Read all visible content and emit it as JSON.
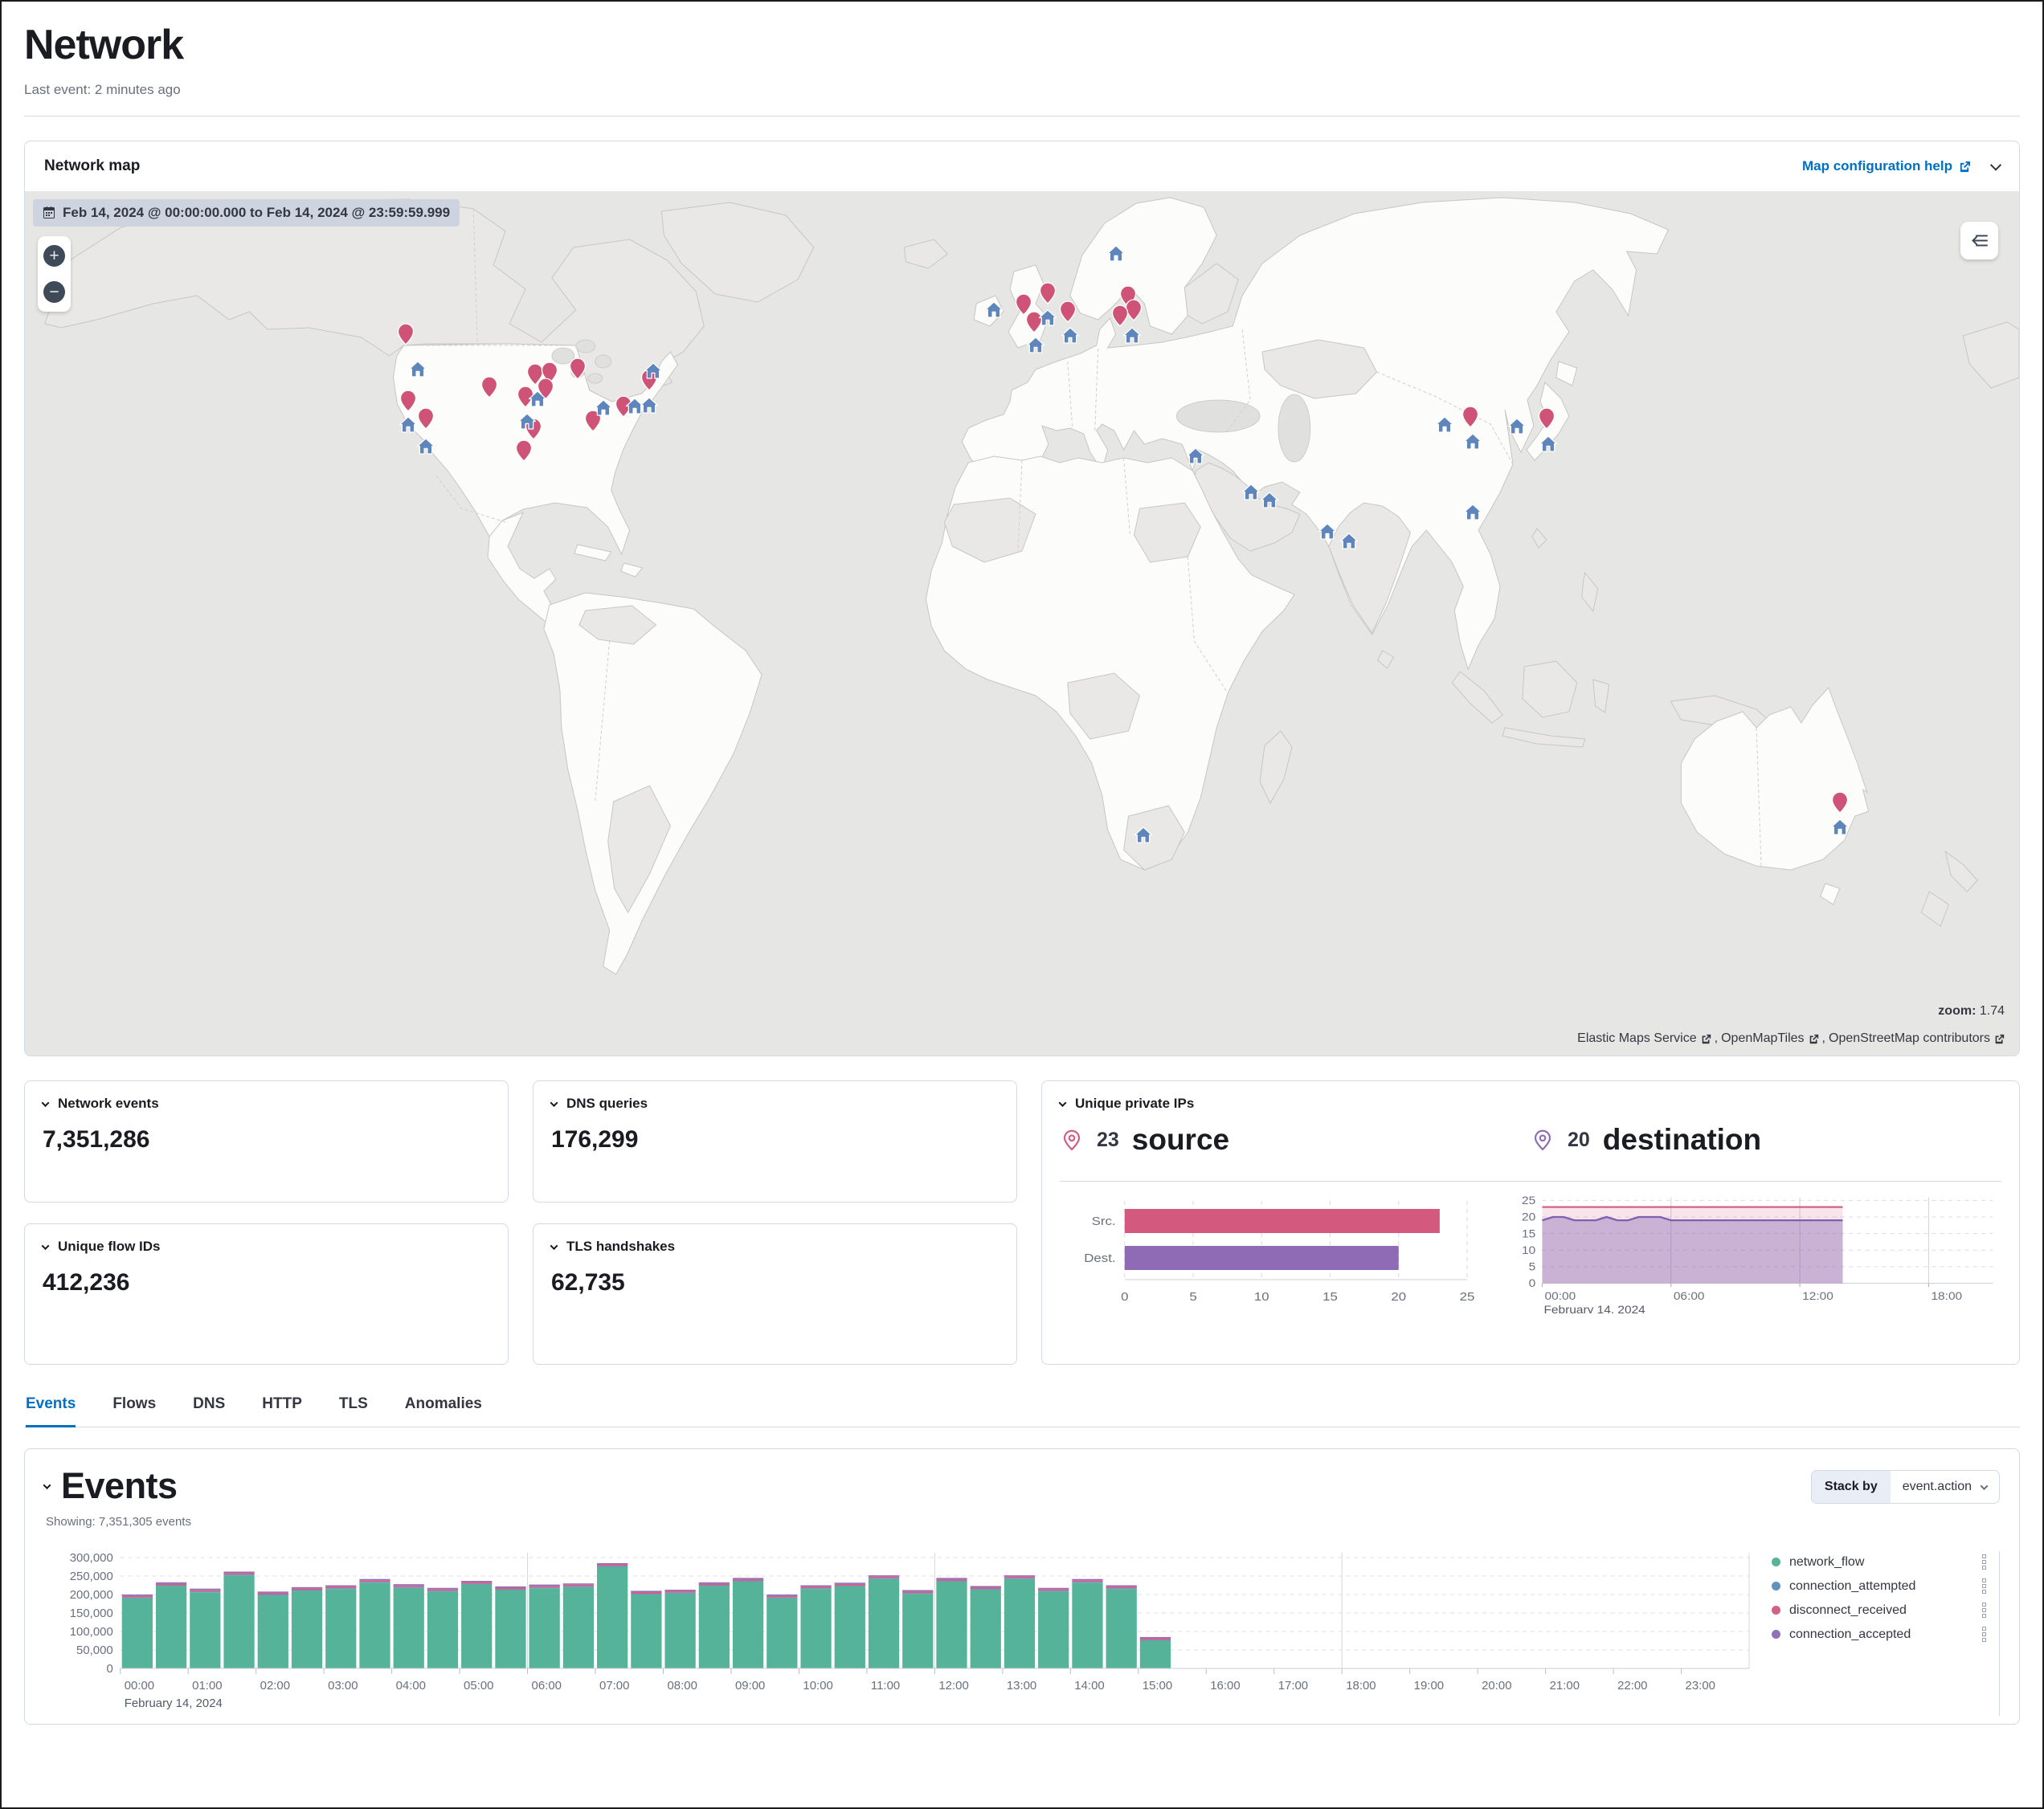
{
  "page": {
    "title": "Network",
    "last_event": "Last event: 2 minutes ago"
  },
  "map_panel": {
    "title": "Network map",
    "help_link": "Map configuration help",
    "date_badge": "Feb 14, 2024 @ 00:00:00.000 to Feb 14, 2024 @ 23:59:59.999",
    "zoom_label": "zoom:",
    "zoom_value": "1.74",
    "zoom_in": "+",
    "zoom_out": "−",
    "attribution": {
      "a": "Elastic Maps Service",
      "b": "OpenMapTiles",
      "c": "OpenStreetMap contributors",
      "separator": ", "
    },
    "pin_colors": {
      "destination": "#CE5377",
      "source": "#5E86BC"
    },
    "pins": {
      "destination": [
        [
          19.1,
          18.3
        ],
        [
          19.2,
          26.0
        ],
        [
          20.1,
          28.1
        ],
        [
          23.3,
          24.4
        ],
        [
          25.6,
          23.0
        ],
        [
          26.3,
          22.8
        ],
        [
          27.7,
          22.3
        ],
        [
          25.1,
          25.6
        ],
        [
          26.1,
          24.6
        ],
        [
          25.5,
          29.3
        ],
        [
          25.0,
          31.8
        ],
        [
          28.5,
          28.3
        ],
        [
          30.0,
          26.7
        ],
        [
          31.3,
          23.6
        ],
        [
          50.1,
          14.9
        ],
        [
          51.3,
          13.6
        ],
        [
          50.6,
          16.9
        ],
        [
          52.3,
          15.7
        ],
        [
          55.3,
          13.9
        ],
        [
          55.6,
          15.5
        ],
        [
          54.9,
          16.2
        ],
        [
          72.5,
          27.9
        ],
        [
          76.3,
          28.1
        ],
        [
          91.0,
          72.5
        ]
      ],
      "source": [
        [
          19.7,
          20.8
        ],
        [
          19.2,
          27.2
        ],
        [
          20.1,
          29.7
        ],
        [
          25.7,
          24.3
        ],
        [
          25.2,
          26.9
        ],
        [
          29.0,
          25.3
        ],
        [
          30.6,
          25.1
        ],
        [
          31.3,
          25.0
        ],
        [
          31.5,
          21.0
        ],
        [
          48.6,
          13.9
        ],
        [
          51.3,
          14.9
        ],
        [
          50.7,
          18.0
        ],
        [
          52.4,
          16.9
        ],
        [
          55.5,
          16.9
        ],
        [
          54.7,
          7.4
        ],
        [
          58.7,
          30.9
        ],
        [
          61.5,
          35.0
        ],
        [
          62.4,
          36.0
        ],
        [
          65.3,
          39.6
        ],
        [
          66.4,
          40.7
        ],
        [
          71.2,
          27.2
        ],
        [
          72.6,
          29.2
        ],
        [
          74.8,
          27.4
        ],
        [
          76.4,
          29.5
        ],
        [
          72.6,
          37.4
        ],
        [
          56.1,
          74.7
        ],
        [
          91.0,
          73.8
        ]
      ]
    }
  },
  "kpis": [
    {
      "label": "Network events",
      "value": "7,351,286"
    },
    {
      "label": "DNS queries",
      "value": "176,299"
    },
    {
      "label": "Unique flow IDs",
      "value": "412,236"
    },
    {
      "label": "TLS handshakes",
      "value": "62,735"
    }
  ],
  "unique_ips": {
    "label": "Unique private IPs",
    "source_count": "23",
    "source_word": "source",
    "destination_count": "20",
    "destination_word": "destination",
    "source_color": "#D36086",
    "destination_color": "#9170B8"
  },
  "tabs": [
    {
      "label": "Events",
      "active": true
    },
    {
      "label": "Flows",
      "active": false
    },
    {
      "label": "DNS",
      "active": false
    },
    {
      "label": "HTTP",
      "active": false
    },
    {
      "label": "TLS",
      "active": false
    },
    {
      "label": "Anomalies",
      "active": false
    }
  ],
  "events": {
    "title": "Events",
    "showing": "Showing: 7,351,305 events",
    "stack_by_label": "Stack by",
    "stack_by_value": "event.action",
    "legend": [
      {
        "label": "network_flow",
        "color": "#54B399"
      },
      {
        "label": "connection_attempted",
        "color": "#6092C0"
      },
      {
        "label": "disconnect_received",
        "color": "#D36086"
      },
      {
        "label": "connection_accepted",
        "color": "#9170B8"
      }
    ]
  },
  "chart_data": [
    {
      "id": "unique-ips-bar",
      "type": "bar",
      "orientation": "horizontal",
      "categories": [
        "Src.",
        "Dest."
      ],
      "values": [
        23,
        20
      ],
      "colors": [
        "#D4597F",
        "#8F6BB5"
      ],
      "xlim": [
        0,
        25
      ],
      "xticks": [
        0,
        5,
        10,
        15,
        20,
        25
      ],
      "xtick_labels": [
        "0",
        "5",
        "10",
        "15",
        "20",
        "25"
      ]
    },
    {
      "id": "unique-ips-area",
      "type": "area",
      "xlim_hours": [
        0,
        21
      ],
      "x_step_hours": 0.5,
      "xticks_hours": [
        0,
        6,
        12,
        18
      ],
      "xtick_labels": [
        "00:00",
        "06:00",
        "12:00",
        "18:00"
      ],
      "date_label": "February 14, 2024",
      "ylim": [
        0,
        25
      ],
      "yticks": [
        0,
        5,
        10,
        15,
        20,
        25
      ],
      "ytick_labels": [
        "0",
        "5",
        "10",
        "15",
        "20",
        "25"
      ],
      "series": [
        {
          "name": "source",
          "color": "#D36086",
          "fill_opacity": 0.16,
          "values": [
            23,
            23,
            23,
            23,
            23,
            23,
            23,
            23,
            23,
            23,
            23,
            23,
            23,
            23,
            23,
            23,
            23,
            23,
            23,
            23,
            23,
            23,
            23,
            23,
            23,
            23,
            23,
            23,
            23
          ]
        },
        {
          "name": "destination",
          "color": "#7F5FB0",
          "fill_opacity": 0.38,
          "values": [
            19,
            20,
            20,
            19,
            19,
            19,
            20,
            19,
            19,
            20,
            20,
            20,
            19,
            19,
            19,
            19,
            19,
            19,
            19,
            19,
            19,
            19,
            19,
            19,
            19,
            19,
            19,
            19,
            19
          ]
        }
      ]
    },
    {
      "id": "events-histogram",
      "type": "bar",
      "stacked": true,
      "interval_hours": 0.5,
      "xlim_hours": [
        0,
        24
      ],
      "categories": [
        "00:00",
        "00:30",
        "01:00",
        "01:30",
        "02:00",
        "02:30",
        "03:00",
        "03:30",
        "04:00",
        "04:30",
        "05:00",
        "05:30",
        "06:00",
        "06:30",
        "07:00",
        "07:30",
        "08:00",
        "08:30",
        "09:00",
        "09:30",
        "10:00",
        "10:30",
        "11:00",
        "11:30",
        "12:00",
        "12:30",
        "13:00",
        "13:30",
        "14:00",
        "14:30",
        "15:00"
      ],
      "x_axis_hours": [
        "00:00",
        "01:00",
        "02:00",
        "03:00",
        "04:00",
        "05:00",
        "06:00",
        "07:00",
        "08:00",
        "09:00",
        "10:00",
        "11:00",
        "12:00",
        "13:00",
        "14:00",
        "15:00",
        "16:00",
        "17:00",
        "18:00",
        "19:00",
        "20:00",
        "21:00",
        "22:00",
        "23:00"
      ],
      "date_label": "February 14, 2024",
      "ylim": [
        0,
        300000
      ],
      "yticks": [
        0,
        50000,
        100000,
        150000,
        200000,
        250000,
        300000
      ],
      "ytick_labels": [
        "0",
        "50,000",
        "100,000",
        "150,000",
        "200,000",
        "250,000",
        "300,000"
      ],
      "series": [
        {
          "name": "network_flow",
          "color": "#54B399",
          "values": [
            190000,
            223000,
            206000,
            252000,
            198000,
            210000,
            215000,
            232000,
            218000,
            208000,
            227000,
            212000,
            217000,
            220000,
            275000,
            200000,
            203000,
            223000,
            235000,
            190000,
            215000,
            222000,
            242000,
            202000,
            235000,
            213000,
            242000,
            208000,
            232000,
            215000,
            75000
          ]
        },
        {
          "name": "connection_attempted",
          "color": "#6092C0",
          "values": [
            2000,
            2000,
            2000,
            2000,
            2000,
            2000,
            2000,
            2000,
            2000,
            2000,
            2000,
            2000,
            2000,
            2000,
            2000,
            2000,
            2000,
            2000,
            2000,
            2000,
            2000,
            2000,
            2000,
            2000,
            2000,
            2000,
            2000,
            2000,
            2000,
            2000,
            2000
          ]
        },
        {
          "name": "disconnect_received",
          "color": "#D36086",
          "values": [
            4500,
            4500,
            4500,
            4500,
            4500,
            4500,
            4500,
            4500,
            4500,
            4500,
            4500,
            4500,
            4500,
            4500,
            4500,
            4500,
            4500,
            4500,
            4500,
            4500,
            4500,
            4500,
            4500,
            4500,
            4500,
            4500,
            4500,
            4500,
            4500,
            4500,
            4500
          ]
        },
        {
          "name": "connection_accepted",
          "color": "#9170B8",
          "values": [
            3500,
            3500,
            3500,
            3500,
            3500,
            3500,
            3500,
            3500,
            3500,
            3500,
            3500,
            3500,
            3500,
            3500,
            3500,
            3500,
            3500,
            3500,
            3500,
            3500,
            3500,
            3500,
            3500,
            3500,
            3500,
            3500,
            3500,
            3500,
            3500,
            3500,
            3500
          ]
        }
      ]
    }
  ]
}
